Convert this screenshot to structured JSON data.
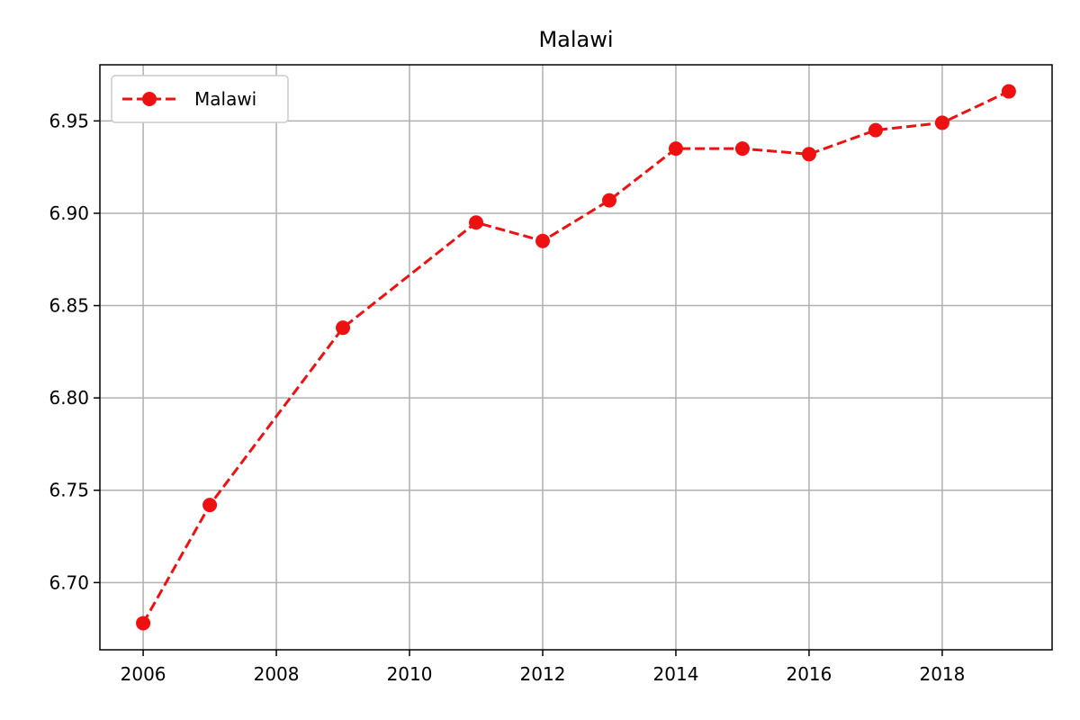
{
  "chart_data": {
    "type": "line",
    "title": "Malawi",
    "xlabel": "",
    "ylabel": "",
    "x": [
      2006,
      2007,
      2009,
      2011,
      2012,
      2013,
      2014,
      2015,
      2016,
      2017,
      2018,
      2019
    ],
    "series": [
      {
        "name": "Malawi",
        "values": [
          6.678,
          6.742,
          6.838,
          6.895,
          6.885,
          6.907,
          6.935,
          6.935,
          6.932,
          6.945,
          6.949,
          6.966
        ],
        "color": "#ee1111",
        "line_style": "dashed",
        "marker": "circle"
      }
    ],
    "xlim": [
      2005.35,
      2019.65
    ],
    "ylim": [
      6.6636,
      6.9804
    ],
    "x_ticks": [
      2006,
      2008,
      2010,
      2012,
      2014,
      2016,
      2018
    ],
    "x_tick_labels": [
      "2006",
      "2008",
      "2010",
      "2012",
      "2014",
      "2016",
      "2018"
    ],
    "y_ticks": [
      6.7,
      6.75,
      6.8,
      6.85,
      6.9,
      6.95
    ],
    "y_tick_labels": [
      "6.70",
      "6.75",
      "6.80",
      "6.85",
      "6.90",
      "6.95"
    ],
    "grid": true,
    "grid_color": "#b0b0b0",
    "legend_position": "top-left"
  }
}
